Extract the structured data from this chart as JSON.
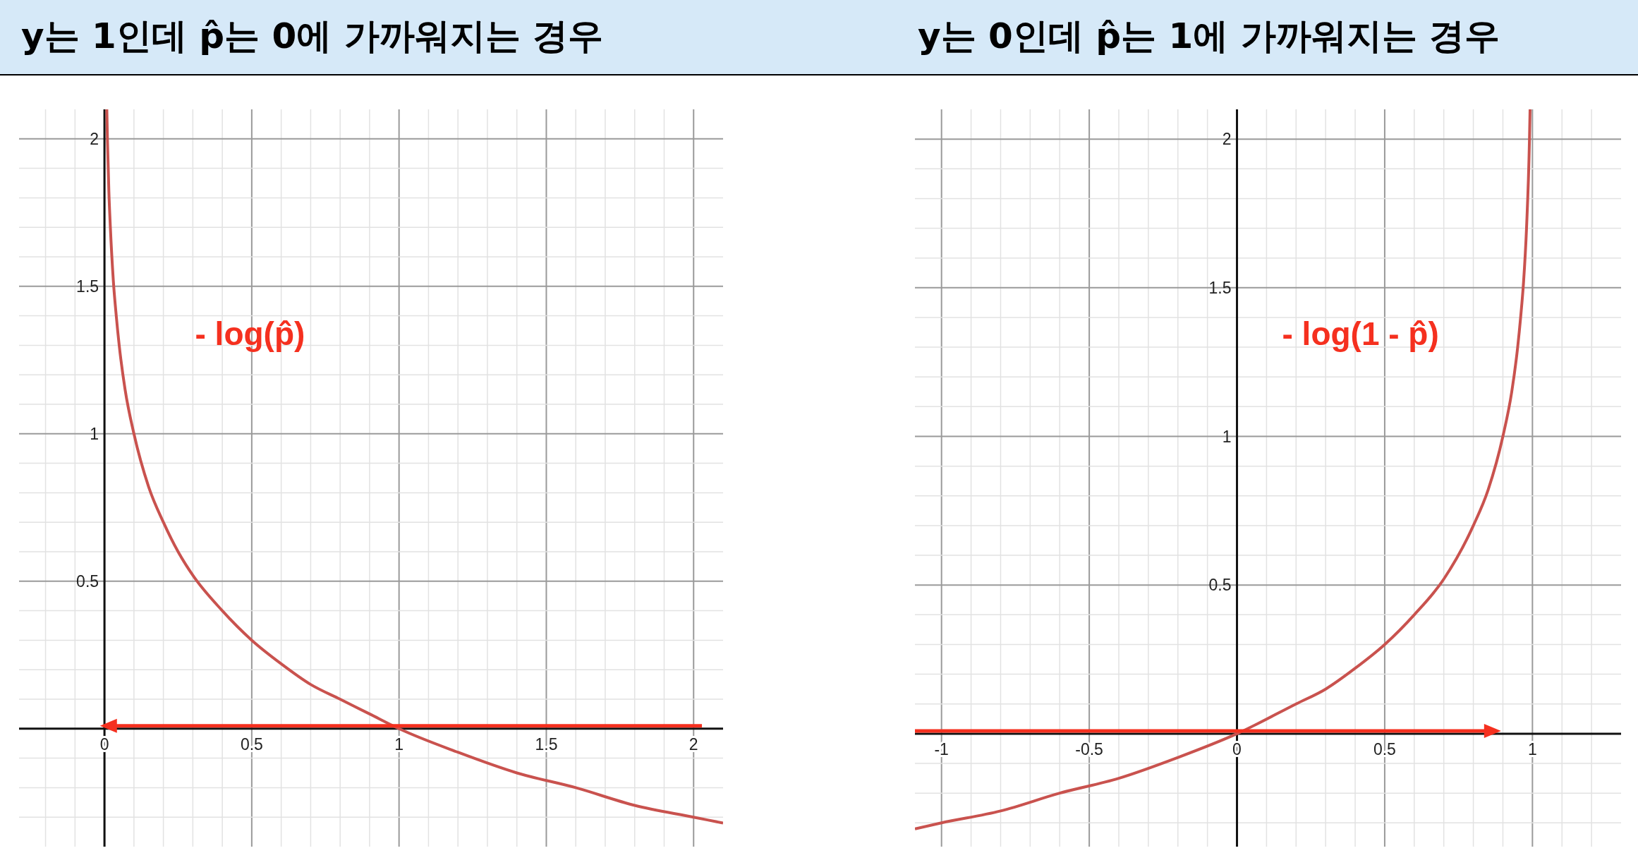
{
  "chart_data": [
    {
      "type": "line",
      "title": "y는 1인데 p̂는 0에 가까워지는 경우",
      "grid": true,
      "xlim": [
        -0.29,
        2.1
      ],
      "ylim": [
        -0.4,
        2.1
      ],
      "xticks": [
        {
          "value": -0.2,
          "label": null
        },
        {
          "value": -0.1,
          "label": null
        },
        0,
        {
          "value": 0.1,
          "label": null
        },
        {
          "value": 0.2,
          "label": null
        },
        {
          "value": 0.3,
          "label": null
        },
        {
          "value": 0.4,
          "label": null
        },
        0.5,
        {
          "value": 0.6,
          "label": null
        },
        {
          "value": 0.7,
          "label": null
        },
        {
          "value": 0.8,
          "label": null
        },
        {
          "value": 0.9,
          "label": null
        },
        1,
        {
          "value": 1.1,
          "label": null
        },
        {
          "value": 1.2,
          "label": null
        },
        {
          "value": 1.3,
          "label": null
        },
        {
          "value": 1.4,
          "label": null
        },
        1.5,
        {
          "value": 1.6,
          "label": null
        },
        {
          "value": 1.7,
          "label": null
        },
        {
          "value": 1.8,
          "label": null
        },
        {
          "value": 1.9,
          "label": null
        },
        2
      ],
      "yticks": [
        {
          "value": -0.3,
          "label": null
        },
        {
          "value": -0.2,
          "label": null
        },
        {
          "value": -0.1,
          "label": null
        },
        {
          "value": 0,
          "label": null
        },
        {
          "value": 0.1,
          "label": null
        },
        {
          "value": 0.2,
          "label": null
        },
        {
          "value": 0.3,
          "label": null
        },
        {
          "value": 0.4,
          "label": null
        },
        0.5,
        {
          "value": 0.6,
          "label": null
        },
        {
          "value": 0.7,
          "label": null
        },
        {
          "value": 0.8,
          "label": null
        },
        {
          "value": 0.9,
          "label": null
        },
        1,
        {
          "value": 1.1,
          "label": null
        },
        {
          "value": 1.2,
          "label": null
        },
        {
          "value": 1.3,
          "label": null
        },
        {
          "value": 1.4,
          "label": null
        },
        1.5,
        {
          "value": 1.6,
          "label": null
        },
        {
          "value": 1.7,
          "label": null
        },
        {
          "value": 1.8,
          "label": null
        },
        {
          "value": 1.9,
          "label": null
        },
        2
      ],
      "series": [
        {
          "name": "- log(p̂)",
          "color": "#c9524e",
          "x": [
            0.008,
            0.01,
            0.015,
            0.02,
            0.03,
            0.04,
            0.05,
            0.07,
            0.1,
            0.15,
            0.2,
            0.25,
            0.3,
            0.4,
            0.5,
            0.6,
            0.7,
            0.8,
            0.9,
            1,
            1.2,
            1.4,
            1.6,
            1.8,
            2,
            2.1
          ],
          "values": [
            2.1,
            2,
            1.82,
            1.7,
            1.52,
            1.4,
            1.3,
            1.15,
            1,
            0.82,
            0.7,
            0.6,
            0.52,
            0.4,
            0.3,
            0.22,
            0.15,
            0.1,
            0.05,
            0,
            -0.08,
            -0.15,
            -0.2,
            -0.26,
            -0.3,
            -0.32
          ]
        }
      ]
    },
    {
      "type": "line",
      "title": "y는 0인데 p̂는 1에 가까워지는 경우",
      "grid": true,
      "xlim": [
        -1.09,
        1.3
      ],
      "ylim": [
        -0.38,
        2.1
      ],
      "xticks": [
        -1,
        {
          "value": -0.9,
          "label": null
        },
        {
          "value": -0.8,
          "label": null
        },
        {
          "value": -0.7,
          "label": null
        },
        {
          "value": -0.6,
          "label": null
        },
        -0.5,
        {
          "value": -0.4,
          "label": null
        },
        {
          "value": -0.3,
          "label": null
        },
        {
          "value": -0.2,
          "label": null
        },
        {
          "value": -0.1,
          "label": null
        },
        0,
        {
          "value": 0.1,
          "label": null
        },
        {
          "value": 0.2,
          "label": null
        },
        {
          "value": 0.3,
          "label": null
        },
        {
          "value": 0.4,
          "label": null
        },
        0.5,
        {
          "value": 0.6,
          "label": null
        },
        {
          "value": 0.7,
          "label": null
        },
        {
          "value": 0.8,
          "label": null
        },
        {
          "value": 0.9,
          "label": null
        },
        1,
        {
          "value": 1.1,
          "label": null
        },
        {
          "value": 1.2,
          "label": null
        }
      ],
      "yticks": [
        {
          "value": -0.3,
          "label": null
        },
        {
          "value": -0.2,
          "label": null
        },
        {
          "value": -0.1,
          "label": null
        },
        {
          "value": 0,
          "label": null
        },
        {
          "value": 0.1,
          "label": null
        },
        {
          "value": 0.2,
          "label": null
        },
        {
          "value": 0.3,
          "label": null
        },
        {
          "value": 0.4,
          "label": null
        },
        0.5,
        {
          "value": 0.6,
          "label": null
        },
        {
          "value": 0.7,
          "label": null
        },
        {
          "value": 0.8,
          "label": null
        },
        {
          "value": 0.9,
          "label": null
        },
        1,
        {
          "value": 1.1,
          "label": null
        },
        {
          "value": 1.2,
          "label": null
        },
        {
          "value": 1.3,
          "label": null
        },
        {
          "value": 1.4,
          "label": null
        },
        1.5,
        {
          "value": 1.6,
          "label": null
        },
        {
          "value": 1.7,
          "label": null
        },
        {
          "value": 1.8,
          "label": null
        },
        {
          "value": 1.9,
          "label": null
        },
        2
      ],
      "series": [
        {
          "name": "- log(1 - p̂)",
          "color": "#c9524e",
          "x": [
            -1.09,
            -1,
            -0.8,
            -0.6,
            -0.4,
            -0.2,
            0,
            0.2,
            0.3,
            0.4,
            0.5,
            0.6,
            0.7,
            0.8,
            0.85,
            0.9,
            0.93,
            0.95,
            0.96,
            0.97,
            0.98,
            0.99,
            0.992
          ],
          "values": [
            -0.32,
            -0.3,
            -0.26,
            -0.2,
            -0.15,
            -0.08,
            0,
            0.1,
            0.15,
            0.22,
            0.3,
            0.4,
            0.52,
            0.7,
            0.82,
            1,
            1.15,
            1.3,
            1.4,
            1.52,
            1.7,
            2,
            2.1
          ]
        }
      ]
    }
  ]
}
